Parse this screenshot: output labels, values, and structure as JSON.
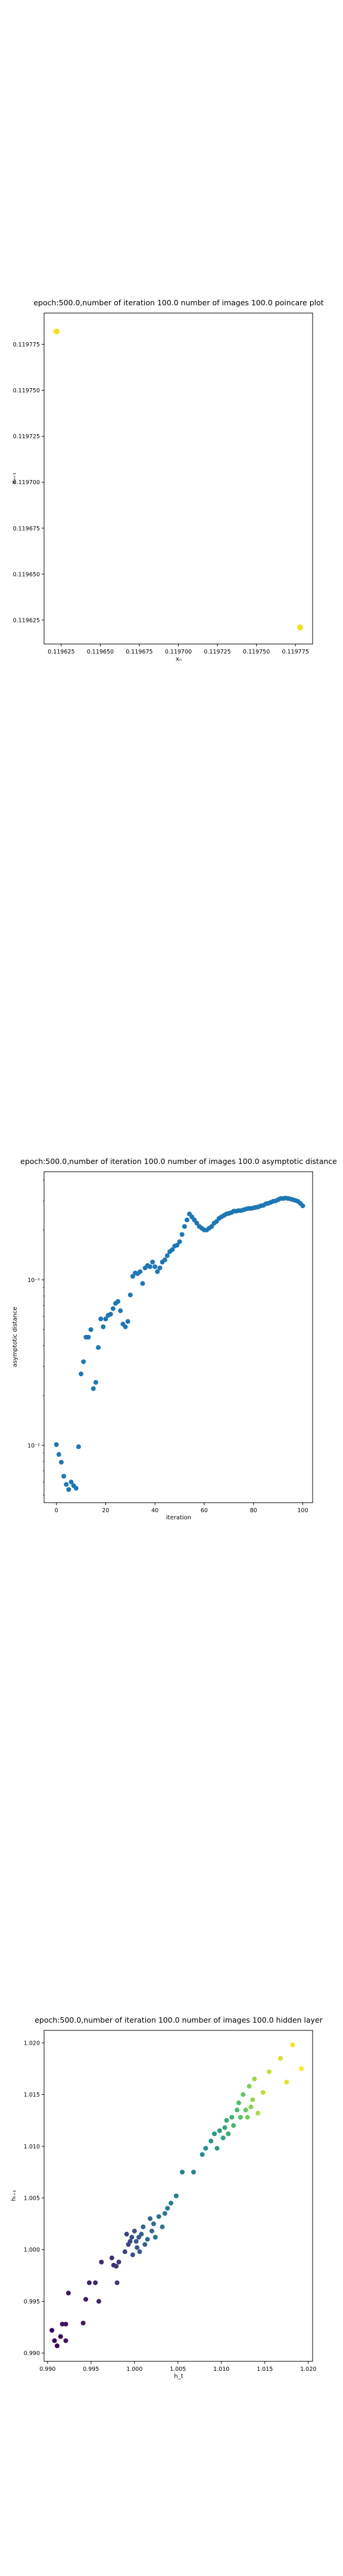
{
  "chart_data": [
    {
      "type": "scatter",
      "title": "epoch:500.0,number of iteration 100.0 number of images 100.0 poincare plot",
      "xlabel": "xₙ",
      "ylabel": "xₙ₊₁",
      "xlim": [
        0.119614,
        0.119786
      ],
      "ylim": [
        0.119612,
        0.119792
      ],
      "xticks": [
        "0.119625",
        "0.119650",
        "0.119675",
        "0.119700",
        "0.119725",
        "0.119750",
        "0.119775"
      ],
      "xtick_values": [
        0.119625,
        0.11965,
        0.119675,
        0.1197,
        0.119725,
        0.11975,
        0.119775
      ],
      "yticks": [
        "0.119625",
        "0.119650",
        "0.119675",
        "0.119700",
        "0.119725",
        "0.119750",
        "0.119775"
      ],
      "ytick_values": [
        0.119625,
        0.11965,
        0.119675,
        0.1197,
        0.119725,
        0.11975,
        0.119775
      ],
      "points": [
        {
          "x": 0.119622,
          "y": 0.119782
        },
        {
          "x": 0.119778,
          "y": 0.119621
        }
      ],
      "color": "#f2e01f",
      "grid": false
    },
    {
      "type": "scatter",
      "title": "epoch:500.0,number of iteration 100.0  number of images 100.0 asymptotic distance",
      "xlabel": "iteration",
      "ylabel": "asymptotic distance",
      "xlim": [
        -5,
        104
      ],
      "ylim": [
        0.0045,
        0.45
      ],
      "yscale": "log",
      "xticks": [
        "0",
        "20",
        "40",
        "60",
        "80",
        "100"
      ],
      "xtick_values": [
        0,
        20,
        40,
        60,
        80,
        100
      ],
      "yticks": [
        "10⁻²",
        "10⁻¹"
      ],
      "ytick_values": [
        0.01,
        0.1
      ],
      "color": "#1f77b4",
      "grid": false,
      "x": [
        0,
        1,
        2,
        3,
        4,
        5,
        6,
        7,
        8,
        9,
        10,
        11,
        12,
        13,
        14,
        15,
        16,
        17,
        18,
        19,
        20,
        21,
        22,
        23,
        24,
        25,
        26,
        27,
        28,
        29,
        30,
        31,
        32,
        33,
        34,
        35,
        36,
        37,
        38,
        39,
        40,
        41,
        42,
        43,
        44,
        45,
        46,
        47,
        48,
        49,
        50,
        51,
        52,
        53,
        54,
        55,
        56,
        57,
        58,
        59,
        60,
        61,
        62,
        63,
        64,
        65,
        66,
        67,
        68,
        69,
        70,
        71,
        72,
        73,
        74,
        75,
        76,
        77,
        78,
        79,
        80,
        81,
        82,
        83,
        84,
        85,
        86,
        87,
        88,
        89,
        90,
        91,
        92,
        93,
        94,
        95,
        96,
        97,
        98,
        99,
        100
      ],
      "y": [
        0.0101,
        0.0088,
        0.0079,
        0.0065,
        0.0058,
        0.0054,
        0.006,
        0.0057,
        0.0055,
        0.0098,
        0.027,
        0.032,
        0.045,
        0.045,
        0.05,
        0.022,
        0.024,
        0.039,
        0.058,
        0.052,
        0.058,
        0.061,
        0.062,
        0.067,
        0.072,
        0.074,
        0.065,
        0.054,
        0.052,
        0.056,
        0.081,
        0.105,
        0.11,
        0.109,
        0.112,
        0.095,
        0.118,
        0.122,
        0.12,
        0.128,
        0.12,
        0.112,
        0.118,
        0.128,
        0.132,
        0.14,
        0.148,
        0.152,
        0.16,
        0.162,
        0.17,
        0.188,
        0.21,
        0.23,
        0.25,
        0.24,
        0.23,
        0.22,
        0.21,
        0.205,
        0.2,
        0.2,
        0.205,
        0.21,
        0.22,
        0.225,
        0.235,
        0.24,
        0.245,
        0.25,
        0.252,
        0.255,
        0.26,
        0.26,
        0.262,
        0.262,
        0.265,
        0.268,
        0.27,
        0.27,
        0.272,
        0.274,
        0.276,
        0.28,
        0.282,
        0.288,
        0.29,
        0.294,
        0.298,
        0.3,
        0.305,
        0.31,
        0.31,
        0.312,
        0.31,
        0.308,
        0.305,
        0.302,
        0.298,
        0.29,
        0.28
      ]
    },
    {
      "type": "scatter",
      "title": "epoch:500.0,number of iteration 100.0  number of images 100.0 hidden layer",
      "xlabel": "h_t",
      "ylabel": "hₜ₊₁",
      "xlim": [
        0.9896,
        1.0205
      ],
      "ylim": [
        0.9892,
        1.0212
      ],
      "xticks": [
        "0.990",
        "0.995",
        "1.000",
        "1.005",
        "1.010",
        "1.015",
        "1.020"
      ],
      "xtick_values": [
        0.99,
        0.995,
        1.0,
        1.005,
        1.01,
        1.015,
        1.02
      ],
      "yticks": [
        "0.990",
        "0.995",
        "1.000",
        "1.005",
        "1.010",
        "1.015",
        "1.020"
      ],
      "ytick_values": [
        0.99,
        0.995,
        1.0,
        1.005,
        1.01,
        1.015,
        1.02
      ],
      "colormap": [
        "#440154",
        "#3b528b",
        "#21918c",
        "#5ec962",
        "#fde725"
      ],
      "grid": false,
      "points": [
        {
          "x": 0.9905,
          "y": 0.9922,
          "c": 0.0
        },
        {
          "x": 0.9908,
          "y": 0.9912,
          "c": 0.01
        },
        {
          "x": 0.9911,
          "y": 0.9907,
          "c": 0.02
        },
        {
          "x": 0.9915,
          "y": 0.9916,
          "c": 0.03
        },
        {
          "x": 0.9917,
          "y": 0.9928,
          "c": 0.04
        },
        {
          "x": 0.9921,
          "y": 0.9928,
          "c": 0.05
        },
        {
          "x": 0.9921,
          "y": 0.9912,
          "c": 0.06
        },
        {
          "x": 0.9924,
          "y": 0.9958,
          "c": 0.07
        },
        {
          "x": 0.9941,
          "y": 0.9929,
          "c": 0.08
        },
        {
          "x": 0.9944,
          "y": 0.9952,
          "c": 0.09
        },
        {
          "x": 0.9948,
          "y": 0.9968,
          "c": 0.1
        },
        {
          "x": 0.9955,
          "y": 0.9968,
          "c": 0.11
        },
        {
          "x": 0.9959,
          "y": 0.995,
          "c": 0.12
        },
        {
          "x": 0.9962,
          "y": 0.9988,
          "c": 0.13
        },
        {
          "x": 0.9974,
          "y": 0.9992,
          "c": 0.14
        },
        {
          "x": 0.9976,
          "y": 0.9985,
          "c": 0.15
        },
        {
          "x": 0.9979,
          "y": 0.9984,
          "c": 0.16
        },
        {
          "x": 0.998,
          "y": 0.9968,
          "c": 0.17
        },
        {
          "x": 0.9982,
          "y": 0.9988,
          "c": 0.18
        },
        {
          "x": 0.9989,
          "y": 0.9998,
          "c": 0.19
        },
        {
          "x": 0.9991,
          "y": 1.0015,
          "c": 0.2
        },
        {
          "x": 0.9993,
          "y": 1.0005,
          "c": 0.21
        },
        {
          "x": 0.9995,
          "y": 1.0008,
          "c": 0.22
        },
        {
          "x": 0.9997,
          "y": 1.0012,
          "c": 0.23
        },
        {
          "x": 0.9998,
          "y": 0.9995,
          "c": 0.24
        },
        {
          "x": 1.0,
          "y": 1.0018,
          "c": 0.25
        },
        {
          "x": 1.0002,
          "y": 1.0008,
          "c": 0.26
        },
        {
          "x": 1.0003,
          "y": 1.0002,
          "c": 0.27
        },
        {
          "x": 1.0005,
          "y": 1.0012,
          "c": 0.28
        },
        {
          "x": 1.0006,
          "y": 0.9998,
          "c": 0.29
        },
        {
          "x": 1.0008,
          "y": 1.0015,
          "c": 0.3
        },
        {
          "x": 1.001,
          "y": 1.0022,
          "c": 0.31
        },
        {
          "x": 1.0012,
          "y": 1.0005,
          "c": 0.32
        },
        {
          "x": 1.0015,
          "y": 1.001,
          "c": 0.33
        },
        {
          "x": 1.0018,
          "y": 1.003,
          "c": 0.34
        },
        {
          "x": 1.002,
          "y": 1.0018,
          "c": 0.35
        },
        {
          "x": 1.0022,
          "y": 1.0025,
          "c": 0.36
        },
        {
          "x": 1.0024,
          "y": 1.0012,
          "c": 0.37
        },
        {
          "x": 1.0028,
          "y": 1.0032,
          "c": 0.38
        },
        {
          "x": 1.0032,
          "y": 1.0022,
          "c": 0.39
        },
        {
          "x": 1.0035,
          "y": 1.0035,
          "c": 0.4
        },
        {
          "x": 1.0038,
          "y": 1.004,
          "c": 0.41
        },
        {
          "x": 1.0042,
          "y": 1.0045,
          "c": 0.42
        },
        {
          "x": 1.0048,
          "y": 1.0052,
          "c": 0.43
        },
        {
          "x": 1.0055,
          "y": 1.0075,
          "c": 0.44
        },
        {
          "x": 1.0068,
          "y": 1.0075,
          "c": 0.46
        },
        {
          "x": 1.0078,
          "y": 1.0092,
          "c": 0.48
        },
        {
          "x": 1.0082,
          "y": 1.0098,
          "c": 0.5
        },
        {
          "x": 1.0088,
          "y": 1.0105,
          "c": 0.52
        },
        {
          "x": 1.0092,
          "y": 1.0112,
          "c": 0.53
        },
        {
          "x": 1.0095,
          "y": 1.0098,
          "c": 0.54
        },
        {
          "x": 1.0098,
          "y": 1.0115,
          "c": 0.56
        },
        {
          "x": 1.0102,
          "y": 1.0108,
          "c": 0.57
        },
        {
          "x": 1.0104,
          "y": 1.0118,
          "c": 0.58
        },
        {
          "x": 1.0106,
          "y": 1.0125,
          "c": 0.6
        },
        {
          "x": 1.0108,
          "y": 1.0112,
          "c": 0.62
        },
        {
          "x": 1.0112,
          "y": 1.0128,
          "c": 0.64
        },
        {
          "x": 1.0114,
          "y": 1.012,
          "c": 0.66
        },
        {
          "x": 1.0118,
          "y": 1.0135,
          "c": 0.68
        },
        {
          "x": 1.012,
          "y": 1.0142,
          "c": 0.7
        },
        {
          "x": 1.0122,
          "y": 1.0128,
          "c": 0.72
        },
        {
          "x": 1.0125,
          "y": 1.015,
          "c": 0.74
        },
        {
          "x": 1.0128,
          "y": 1.0135,
          "c": 0.76
        },
        {
          "x": 1.013,
          "y": 1.0128,
          "c": 0.78
        },
        {
          "x": 1.0132,
          "y": 1.0158,
          "c": 0.8
        },
        {
          "x": 1.0134,
          "y": 1.0138,
          "c": 0.82
        },
        {
          "x": 1.0136,
          "y": 1.0145,
          "c": 0.84
        },
        {
          "x": 1.0138,
          "y": 1.0165,
          "c": 0.86
        },
        {
          "x": 1.0142,
          "y": 1.0132,
          "c": 0.88
        },
        {
          "x": 1.0148,
          "y": 1.0152,
          "c": 0.9
        },
        {
          "x": 1.0155,
          "y": 1.0172,
          "c": 0.92
        },
        {
          "x": 1.0168,
          "y": 1.0185,
          "c": 0.94
        },
        {
          "x": 1.0175,
          "y": 1.0162,
          "c": 0.96
        },
        {
          "x": 1.0182,
          "y": 1.0198,
          "c": 0.98
        },
        {
          "x": 1.0192,
          "y": 1.0175,
          "c": 1.0
        }
      ]
    }
  ]
}
